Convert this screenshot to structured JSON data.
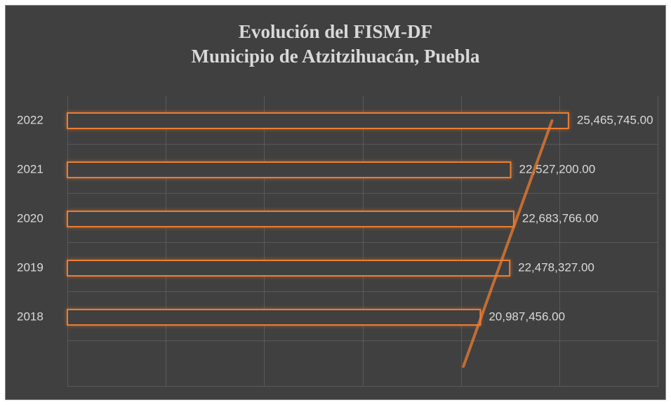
{
  "chart_data": {
    "type": "bar",
    "orientation": "horizontal",
    "title": "Evolución del FISM-DF",
    "subtitle": "Municipio de Atzitzihuacán, Puebla",
    "categories": [
      "2018",
      "2019",
      "2020",
      "2021",
      "2022"
    ],
    "values": [
      20987456,
      22478327,
      22683766,
      22527200,
      25465745
    ],
    "value_labels": [
      "20,987,456.00",
      "22,478,327.00",
      "22,683,766.00",
      "22,527,200.00",
      "25,465,745.00"
    ],
    "color": "#ed7d31",
    "xlim": [
      0,
      30000000
    ],
    "xticks": [
      0,
      5000000,
      10000000,
      15000000,
      20000000,
      25000000,
      30000000
    ],
    "grid": true,
    "trendline": true
  }
}
